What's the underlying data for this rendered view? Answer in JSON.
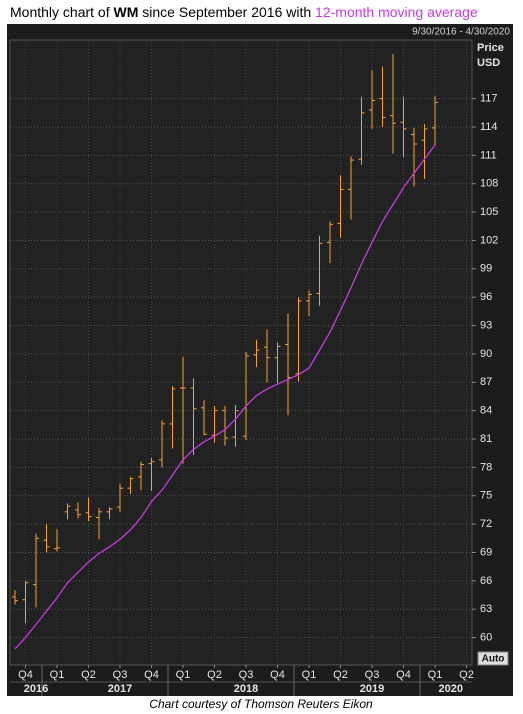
{
  "chart_data": {
    "type": "ohlc",
    "title": {
      "prefix": "Monthly chart of ",
      "ticker": "WM",
      "middle": " since September 2016 with "
    },
    "date_range": "9/30/2016 - 4/30/2020",
    "y_axis_label": [
      "Price",
      "USD"
    ],
    "button": "Auto",
    "source": "Chart courtesy of Thomson Reuters Eikon",
    "color": "#f7a233",
    "categories": [
      null,
      null,
      null,
      null,
      null,
      null,
      null,
      null,
      null,
      null,
      null,
      null,
      null,
      null,
      null,
      null,
      null,
      null,
      null,
      null,
      null,
      null,
      null,
      null,
      null,
      null,
      null,
      null,
      null,
      null,
      null,
      null,
      null,
      null,
      null,
      null,
      null,
      null,
      null,
      null,
      null
    ],
    "open": [
      64.3,
      64.0,
      65.6,
      70.3,
      69.4,
      73.3,
      73.5,
      73.2,
      72.7,
      73.3,
      73.8,
      75.8,
      77.0,
      78.4,
      78.8,
      82.6,
      86.4,
      86.4,
      84.3,
      81.4,
      84.0,
      81.2,
      81.3,
      89.9,
      90.7,
      89.6,
      91.0,
      87.9,
      95.6,
      96.4,
      101.8,
      103.8,
      107.4,
      110.6,
      115.8,
      117.0,
      115.2,
      114.5,
      113.2,
      112.6,
      113.9
    ],
    "high": [
      65.0,
      66.0,
      71.0,
      72.0,
      71.5,
      74.2,
      74.3,
      74.8,
      73.7,
      73.8,
      76.3,
      77.0,
      78.6,
      79.0,
      83.0,
      86.6,
      89.7,
      87.4,
      85.1,
      84.5,
      84.5,
      84.6,
      90.2,
      91.5,
      92.6,
      91.2,
      94.3,
      96.0,
      96.7,
      102.5,
      104.0,
      108.9,
      110.9,
      117.2,
      120.0,
      120.4,
      121.7,
      117.2,
      113.9,
      114.3,
      117.3
    ],
    "low": [
      63.5,
      61.5,
      63.2,
      69.0,
      69.1,
      72.5,
      72.6,
      72.3,
      70.4,
      72.5,
      73.3,
      75.2,
      75.6,
      75.5,
      78.0,
      80.0,
      78.4,
      79.3,
      81.4,
      80.6,
      80.3,
      80.2,
      80.9,
      88.6,
      87.0,
      86.9,
      83.5,
      87.1,
      94.0,
      95.1,
      99.6,
      102.3,
      104.2,
      110.0,
      113.8,
      114.0,
      111.2,
      110.8,
      107.7,
      108.5,
      112.0
    ],
    "close": [
      63.9,
      65.8,
      70.5,
      69.6,
      69.5,
      73.9,
      73.0,
      72.8,
      73.3,
      73.6,
      75.8,
      76.8,
      78.3,
      78.6,
      82.6,
      86.3,
      86.4,
      84.2,
      81.5,
      84.0,
      81.1,
      84.0,
      89.8,
      90.4,
      89.6,
      90.8,
      87.5,
      95.6,
      96.3,
      101.7,
      103.7,
      107.4,
      110.5,
      115.5,
      116.8,
      115.0,
      114.4,
      113.8,
      112.2,
      113.8,
      116.6
    ],
    "moving_average": {
      "name": "12-month moving average",
      "color": "#c43ce0",
      "values": [
        58.8,
        60.0,
        61.4,
        62.8,
        64.2,
        65.8,
        66.9,
        68.0,
        68.9,
        69.6,
        70.4,
        71.4,
        72.7,
        74.4,
        75.6,
        77.2,
        78.8,
        79.9,
        80.7,
        81.3,
        82.0,
        83.1,
        84.5,
        85.6,
        86.3,
        86.8,
        87.3,
        87.8,
        88.5,
        90.4,
        92.3,
        94.6,
        97.0,
        99.5,
        101.8,
        104.0,
        105.8,
        107.6,
        109.1,
        110.6,
        112.1
      ]
    },
    "ylim": [
      57.1,
      123.2
    ],
    "yticks": [
      60,
      63,
      66,
      69,
      72,
      75,
      78,
      81,
      84,
      87,
      90,
      93,
      96,
      99,
      102,
      105,
      108,
      111,
      114,
      117
    ],
    "xticks": [
      {
        "value": 1,
        "label": "Q4"
      },
      {
        "value": 4,
        "label": "Q1"
      },
      {
        "value": 7,
        "label": "Q2"
      },
      {
        "value": 10,
        "label": "Q3"
      },
      {
        "value": 13,
        "label": "Q4"
      },
      {
        "value": 16,
        "label": "Q1"
      },
      {
        "value": 19,
        "label": "Q2"
      },
      {
        "value": 22,
        "label": "Q3"
      },
      {
        "value": 25,
        "label": "Q4"
      },
      {
        "value": 28,
        "label": "Q1"
      },
      {
        "value": 31,
        "label": "Q2"
      },
      {
        "value": 34,
        "label": "Q3"
      },
      {
        "value": 37,
        "label": "Q4"
      },
      {
        "value": 40,
        "label": "Q1"
      },
      {
        "value": 43,
        "label": "Q2"
      }
    ],
    "year_labels": [
      {
        "value": 2,
        "label": "2016"
      },
      {
        "value": 10,
        "label": "2017"
      },
      {
        "value": 22,
        "label": "2018"
      },
      {
        "value": 34,
        "label": "2019"
      },
      {
        "value": 41.5,
        "label": "2020"
      }
    ],
    "grid": true
  }
}
